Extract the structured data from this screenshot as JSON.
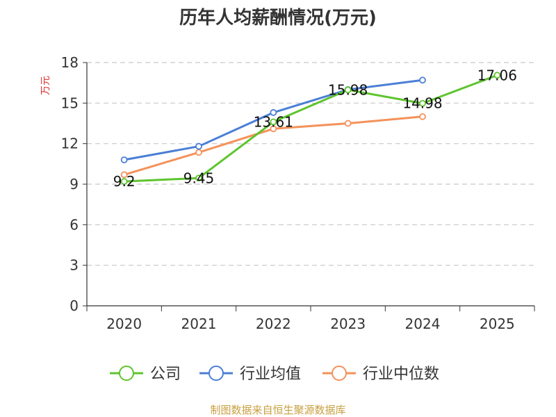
{
  "chart_data": {
    "type": "line",
    "title": "历年人均薪酬情况(万元)",
    "ylabel": "万元",
    "xlabel": "",
    "categories": [
      "2020",
      "2021",
      "2022",
      "2023",
      "2024",
      "2025"
    ],
    "ylim": [
      0,
      18
    ],
    "yticks": [
      0,
      3,
      6,
      9,
      12,
      15,
      18
    ],
    "grid": true,
    "legend_position": "bottom",
    "series": [
      {
        "name": "公司",
        "color": "#5ec42e",
        "values": [
          9.2,
          9.45,
          13.61,
          15.98,
          14.98,
          17.06
        ],
        "labels": [
          "9.2",
          "9.45",
          "13.61",
          "15.98",
          "14.98",
          "17.06"
        ]
      },
      {
        "name": "行业均值",
        "color": "#4a7fd6",
        "values": [
          10.8,
          11.8,
          14.3,
          16.0,
          16.7,
          null
        ]
      },
      {
        "name": "行业中位数",
        "color": "#f5915a",
        "values": [
          9.7,
          11.35,
          13.1,
          13.5,
          14.0,
          null
        ]
      }
    ],
    "source": "制图数据来自恒生聚源数据库"
  }
}
